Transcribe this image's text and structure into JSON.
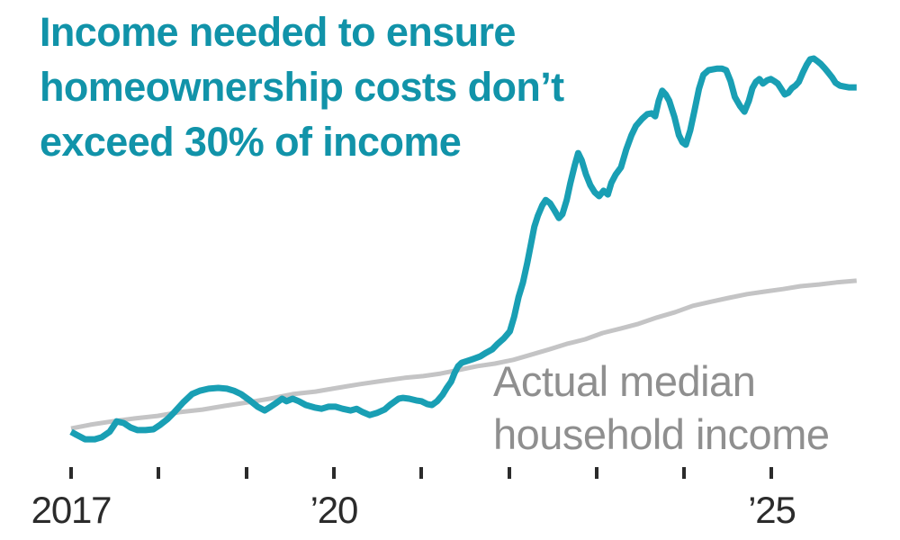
{
  "title": {
    "lines": [
      "Income needed to ensure",
      "homeownership costs don’t",
      "exceed 30% of income"
    ],
    "color": "#1193a9"
  },
  "annotation": {
    "series_label": {
      "lines": [
        "Actual median",
        "household income"
      ],
      "color": "#8f8f8f"
    }
  },
  "axis": {
    "tick_color": "#2b2b2b",
    "label_color": "#2b2b2b"
  },
  "colors": {
    "background": "#ffffff",
    "income_needed_line": "#199fb4",
    "actual_income_line": "#c4c4c5"
  },
  "chart_data": {
    "type": "line",
    "title": "Income needed to ensure homeownership costs don’t exceed 30% of income",
    "xlabel": "",
    "ylabel": "",
    "grid": false,
    "legend_position": "inline text annotation on chart",
    "x_axis": {
      "range": [
        2017.0,
        2026.0
      ],
      "ticks": [
        {
          "year": 2017,
          "label": "2017"
        },
        {
          "year": 2018,
          "label": ""
        },
        {
          "year": 2019,
          "label": ""
        },
        {
          "year": 2020,
          "label": "’20"
        },
        {
          "year": 2021,
          "label": ""
        },
        {
          "year": 2022,
          "label": ""
        },
        {
          "year": 2023,
          "label": ""
        },
        {
          "year": 2024,
          "label": ""
        },
        {
          "year": 2025,
          "label": "’25"
        }
      ]
    },
    "y_axis": {
      "visible": false,
      "unit": "relative index (chart displays no y-axis values); 0 = x-axis baseline, 100 = highest point of teal line",
      "range_displayed": [
        0,
        114
      ]
    },
    "series": [
      {
        "id": "income-needed",
        "name": "Income needed to ensure homeownership costs don’t exceed 30% of income",
        "color": "#199fb4",
        "stroke_width": 7,
        "points": [
          [
            2017.0,
            10.8
          ],
          [
            2017.06,
            10.1
          ],
          [
            2017.16,
            9.0
          ],
          [
            2017.27,
            9.0
          ],
          [
            2017.35,
            9.5
          ],
          [
            2017.44,
            10.8
          ],
          [
            2017.52,
            13.3
          ],
          [
            2017.6,
            12.9
          ],
          [
            2017.68,
            11.8
          ],
          [
            2017.76,
            11.2
          ],
          [
            2017.85,
            11.2
          ],
          [
            2017.94,
            11.4
          ],
          [
            2018.02,
            12.5
          ],
          [
            2018.1,
            13.8
          ],
          [
            2018.18,
            15.5
          ],
          [
            2018.28,
            17.8
          ],
          [
            2018.38,
            19.8
          ],
          [
            2018.47,
            20.6
          ],
          [
            2018.57,
            21.1
          ],
          [
            2018.68,
            21.3
          ],
          [
            2018.78,
            21.1
          ],
          [
            2018.86,
            20.6
          ],
          [
            2018.94,
            19.8
          ],
          [
            2019.04,
            18.3
          ],
          [
            2019.13,
            16.8
          ],
          [
            2019.21,
            15.9
          ],
          [
            2019.28,
            16.8
          ],
          [
            2019.35,
            17.8
          ],
          [
            2019.41,
            18.7
          ],
          [
            2019.46,
            18.1
          ],
          [
            2019.53,
            18.7
          ],
          [
            2019.6,
            18.1
          ],
          [
            2019.68,
            17.2
          ],
          [
            2019.78,
            16.6
          ],
          [
            2019.86,
            16.3
          ],
          [
            2019.94,
            16.8
          ],
          [
            2020.02,
            16.8
          ],
          [
            2020.1,
            16.3
          ],
          [
            2020.19,
            15.9
          ],
          [
            2020.26,
            16.3
          ],
          [
            2020.33,
            15.5
          ],
          [
            2020.41,
            14.8
          ],
          [
            2020.49,
            15.3
          ],
          [
            2020.58,
            16.1
          ],
          [
            2020.64,
            17.2
          ],
          [
            2020.74,
            18.7
          ],
          [
            2020.79,
            18.9
          ],
          [
            2020.86,
            18.7
          ],
          [
            2020.94,
            18.3
          ],
          [
            2021.0,
            18.1
          ],
          [
            2021.07,
            17.4
          ],
          [
            2021.12,
            17.2
          ],
          [
            2021.18,
            18.1
          ],
          [
            2021.24,
            19.6
          ],
          [
            2021.29,
            21.3
          ],
          [
            2021.34,
            22.8
          ],
          [
            2021.38,
            24.9
          ],
          [
            2021.42,
            26.5
          ],
          [
            2021.46,
            27.3
          ],
          [
            2021.52,
            27.7
          ],
          [
            2021.59,
            28.2
          ],
          [
            2021.67,
            28.8
          ],
          [
            2021.74,
            29.7
          ],
          [
            2021.81,
            30.5
          ],
          [
            2021.87,
            31.8
          ],
          [
            2021.94,
            33.1
          ],
          [
            2022.01,
            34.8
          ],
          [
            2022.06,
            38.3
          ],
          [
            2022.11,
            43.0
          ],
          [
            2022.16,
            46.5
          ],
          [
            2022.21,
            51.2
          ],
          [
            2022.25,
            55.5
          ],
          [
            2022.29,
            59.8
          ],
          [
            2022.33,
            62.4
          ],
          [
            2022.38,
            64.9
          ],
          [
            2022.42,
            66.2
          ],
          [
            2022.47,
            65.4
          ],
          [
            2022.52,
            63.7
          ],
          [
            2022.57,
            61.9
          ],
          [
            2022.61,
            62.8
          ],
          [
            2022.66,
            66.2
          ],
          [
            2022.7,
            70.1
          ],
          [
            2022.75,
            74.4
          ],
          [
            2022.79,
            77.4
          ],
          [
            2022.83,
            75.7
          ],
          [
            2022.88,
            72.3
          ],
          [
            2022.93,
            69.7
          ],
          [
            2022.98,
            68.0
          ],
          [
            2023.03,
            67.1
          ],
          [
            2023.08,
            68.4
          ],
          [
            2023.13,
            67.5
          ],
          [
            2023.17,
            70.3
          ],
          [
            2023.22,
            72.3
          ],
          [
            2023.28,
            74.0
          ],
          [
            2023.34,
            78.3
          ],
          [
            2023.4,
            81.7
          ],
          [
            2023.45,
            83.9
          ],
          [
            2023.52,
            85.6
          ],
          [
            2023.58,
            86.7
          ],
          [
            2023.63,
            86.9
          ],
          [
            2023.67,
            86.2
          ],
          [
            2023.71,
            89.9
          ],
          [
            2023.75,
            92.3
          ],
          [
            2023.79,
            91.4
          ],
          [
            2023.83,
            89.9
          ],
          [
            2023.89,
            86.0
          ],
          [
            2023.94,
            81.7
          ],
          [
            2023.98,
            80.0
          ],
          [
            2024.02,
            79.4
          ],
          [
            2024.07,
            82.8
          ],
          [
            2024.12,
            87.7
          ],
          [
            2024.17,
            92.7
          ],
          [
            2024.22,
            96.1
          ],
          [
            2024.28,
            97.2
          ],
          [
            2024.33,
            97.4
          ],
          [
            2024.38,
            97.6
          ],
          [
            2024.43,
            97.6
          ],
          [
            2024.48,
            97.2
          ],
          [
            2024.53,
            94.6
          ],
          [
            2024.58,
            90.8
          ],
          [
            2024.64,
            88.6
          ],
          [
            2024.69,
            87.3
          ],
          [
            2024.74,
            89.9
          ],
          [
            2024.78,
            92.9
          ],
          [
            2024.82,
            94.4
          ],
          [
            2024.86,
            95.1
          ],
          [
            2024.9,
            94.0
          ],
          [
            2024.95,
            94.8
          ],
          [
            2024.99,
            95.1
          ],
          [
            2025.03,
            94.6
          ],
          [
            2025.07,
            94.0
          ],
          [
            2025.11,
            92.7
          ],
          [
            2025.15,
            91.4
          ],
          [
            2025.19,
            91.8
          ],
          [
            2025.23,
            92.9
          ],
          [
            2025.27,
            93.5
          ],
          [
            2025.31,
            94.4
          ],
          [
            2025.36,
            96.8
          ],
          [
            2025.4,
            98.5
          ],
          [
            2025.44,
            99.8
          ],
          [
            2025.48,
            100.0
          ],
          [
            2025.52,
            99.4
          ],
          [
            2025.56,
            98.7
          ],
          [
            2025.6,
            97.8
          ],
          [
            2025.64,
            96.8
          ],
          [
            2025.69,
            95.5
          ],
          [
            2025.73,
            94.2
          ],
          [
            2025.78,
            93.5
          ],
          [
            2025.83,
            93.3
          ],
          [
            2025.88,
            93.1
          ],
          [
            2025.93,
            93.1
          ],
          [
            2025.97,
            93.1
          ]
        ]
      },
      {
        "id": "actual-median-income",
        "name": "Actual median household income",
        "color": "#c4c4c5",
        "stroke_width": 5,
        "points": [
          [
            2017.0,
            11.6
          ],
          [
            2017.22,
            12.5
          ],
          [
            2017.47,
            13.3
          ],
          [
            2017.73,
            14.0
          ],
          [
            2017.99,
            14.6
          ],
          [
            2018.24,
            15.5
          ],
          [
            2018.5,
            16.1
          ],
          [
            2018.76,
            17.0
          ],
          [
            2019.01,
            17.8
          ],
          [
            2019.27,
            18.7
          ],
          [
            2019.53,
            19.8
          ],
          [
            2019.79,
            20.4
          ],
          [
            2020.04,
            21.3
          ],
          [
            2020.3,
            22.2
          ],
          [
            2020.56,
            23.0
          ],
          [
            2020.81,
            23.7
          ],
          [
            2021.02,
            24.1
          ],
          [
            2021.22,
            24.7
          ],
          [
            2021.43,
            25.6
          ],
          [
            2021.64,
            26.5
          ],
          [
            2021.84,
            27.1
          ],
          [
            2022.05,
            28.0
          ],
          [
            2022.25,
            29.2
          ],
          [
            2022.46,
            30.5
          ],
          [
            2022.66,
            31.8
          ],
          [
            2022.87,
            32.9
          ],
          [
            2023.07,
            34.4
          ],
          [
            2023.28,
            35.5
          ],
          [
            2023.48,
            36.6
          ],
          [
            2023.69,
            38.1
          ],
          [
            2023.9,
            39.4
          ],
          [
            2024.1,
            40.9
          ],
          [
            2024.31,
            41.9
          ],
          [
            2024.51,
            42.8
          ],
          [
            2024.72,
            43.7
          ],
          [
            2024.92,
            44.3
          ],
          [
            2025.13,
            44.9
          ],
          [
            2025.33,
            45.6
          ],
          [
            2025.54,
            46.0
          ],
          [
            2025.74,
            46.5
          ],
          [
            2025.97,
            46.9
          ]
        ]
      }
    ]
  }
}
